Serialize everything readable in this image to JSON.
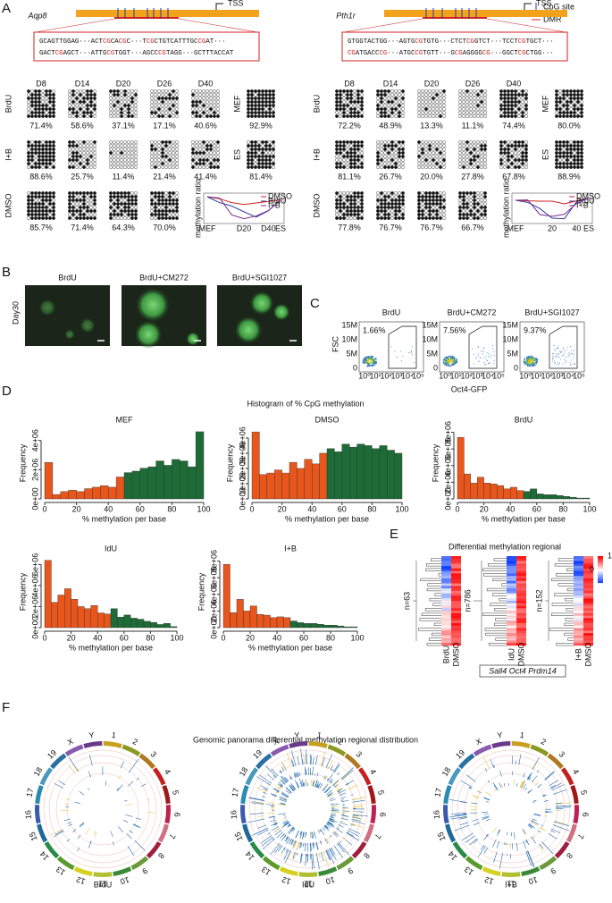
{
  "panel_labels": [
    "A",
    "B",
    "C",
    "D",
    "E",
    "F"
  ],
  "panel_a": {
    "legend": [
      "CpG site",
      "DMR"
    ],
    "tss": "TSS",
    "row_labels": [
      "BrdU",
      "I+B",
      "DMSO"
    ],
    "row_colors": [
      "#2b3a9c",
      "#7b2a8c",
      "#d42020"
    ],
    "days": [
      "D8",
      "D14",
      "D20",
      "D26",
      "D40"
    ],
    "controls": [
      "MEF",
      "ES"
    ],
    "mini_legend": [
      "DMSO",
      "BrdU",
      "I+B"
    ],
    "mini_colors": [
      "#d42020",
      "#2b3a9c",
      "#7b2a8c"
    ],
    "mini_ylabel": "methylation ratio",
    "genes": [
      {
        "name": "Aqp8",
        "seq": [
          "GCAGTTGGAG···ACTCGCACGC···TCGCTGTCATTTGCCGAT···",
          "GACTCGAGCT···ATTGCGTGGT···AGCCCGTAGG···GCTTTACCAT"
        ],
        "rows": [
          [
            "71.4%",
            "58.6%",
            "37.1%",
            "17.1%",
            "40.6%"
          ],
          [
            "88.6%",
            "25.7%",
            "11.4%",
            "21.4%",
            "41.4%"
          ],
          [
            "85.7%",
            "71.4%",
            "64.3%",
            "70.0%"
          ]
        ],
        "mef": "92.9%",
        "es": "81.4%",
        "mini_xticks": [
          "MEF",
          "D20",
          "D40",
          "ES"
        ]
      },
      {
        "name": "Pth1r",
        "seq": [
          "GTGGTACTGG···AGTGCGTGTG···CTCTCGGTCT···TCCTCGTGCT···",
          "CGATGACCCG···ATGCCGTGTT···GCGAGGGGCG···GGCTCGCTGG···"
        ],
        "rows": [
          [
            "72.2%",
            "48.9%",
            "13.3%",
            "11.1%",
            "74.4%"
          ],
          [
            "81.1%",
            "26.7%",
            "20.0%",
            "27.8%",
            "67.8%"
          ],
          [
            "77.8%",
            "76.7%",
            "76.7%",
            "66.7%"
          ]
        ],
        "mef": "80.0%",
        "es": "88.9%",
        "mini_xticks": [
          "MEF",
          "20",
          "40",
          "ES"
        ]
      }
    ]
  },
  "panel_b": {
    "labels": [
      "BrdU",
      "BrdU+CM272",
      "BrdU+SGI1027"
    ],
    "row_label": "Day30"
  },
  "panel_c": {
    "labels": [
      "BrdU",
      "BrdU+CM272",
      "BrdU+SGI1027"
    ],
    "pcts": [
      "1.66%",
      "7.56%",
      "9.37%"
    ],
    "ylabel": "FSC",
    "xlabel": "Oct4-GFP",
    "yticks": [
      "15M",
      "10M",
      "5M",
      "0"
    ],
    "xticks": [
      "10⁰",
      "10¹",
      "10²",
      "10³",
      "10⁴",
      "10⁵"
    ]
  },
  "panel_d": {
    "title": "Histogram of % CpG methylation",
    "xlabel": "% methylation per base",
    "ylabel": "Frequency",
    "charts": [
      {
        "type": "histogram",
        "title": "MEF",
        "bins": [
          0,
          5,
          10,
          15,
          20,
          25,
          30,
          35,
          40,
          45,
          50,
          55,
          60,
          65,
          70,
          75,
          80,
          85,
          90,
          95,
          100
        ],
        "counts": [
          2500000,
          300000,
          500000,
          600000,
          500000,
          700000,
          800000,
          900000,
          800000,
          1500000,
          1800000,
          1900000,
          2100000,
          2200000,
          2600000,
          2300000,
          2700000,
          2600000,
          2200000,
          4600000
        ],
        "colors": [
          "#e8561c",
          "#e8561c",
          "#e8561c",
          "#e8561c",
          "#e8561c",
          "#e8561c",
          "#e8561c",
          "#e8561c",
          "#e8561c",
          "#e8561c",
          "#1d6b36",
          "#1d6b36",
          "#1d6b36",
          "#1d6b36",
          "#1d6b36",
          "#1d6b36",
          "#1d6b36",
          "#1d6b36",
          "#1d6b36",
          "#1d6b36"
        ],
        "xlim": [
          0,
          100
        ],
        "xticks": [
          0,
          20,
          40,
          60,
          80,
          100
        ],
        "ylim": [
          0,
          4900000
        ],
        "yticks": [
          {
            "value": 0,
            "label": "0e+00"
          },
          {
            "value": 2000000,
            "label": "2e+06"
          },
          {
            "value": 4000000,
            "label": "4e+06"
          }
        ]
      },
      {
        "type": "histogram",
        "title": "DMSO",
        "bins": [
          0,
          5,
          10,
          15,
          20,
          25,
          30,
          35,
          40,
          45,
          50,
          55,
          60,
          65,
          70,
          75,
          80,
          85,
          90,
          95,
          100
        ],
        "counts": [
          4400000,
          1600000,
          1700000,
          1900000,
          1700000,
          2400000,
          2000000,
          2600000,
          2300000,
          3000000,
          3300000,
          3100000,
          3600000,
          3400000,
          3600000,
          3500000,
          3300000,
          3500000,
          3200000,
          3000000
        ],
        "colors": [
          "#e8561c",
          "#e8561c",
          "#e8561c",
          "#e8561c",
          "#e8561c",
          "#e8561c",
          "#e8561c",
          "#e8561c",
          "#e8561c",
          "#e8561c",
          "#1d6b36",
          "#1d6b36",
          "#1d6b36",
          "#1d6b36",
          "#1d6b36",
          "#1d6b36",
          "#1d6b36",
          "#1d6b36",
          "#1d6b36",
          "#1d6b36"
        ],
        "xlim": [
          0,
          100
        ],
        "xticks": [
          0,
          20,
          40,
          60,
          80,
          100
        ],
        "ylim": [
          0,
          4700000
        ],
        "yticks": [
          {
            "value": 0,
            "label": "0e+00"
          },
          {
            "value": 1000000,
            "label": "1e+06"
          },
          {
            "value": 2000000,
            "label": "2e+06"
          },
          {
            "value": 3000000,
            "label": "3e+06"
          },
          {
            "value": 4000000,
            "label": "4e+06"
          }
        ]
      },
      {
        "type": "histogram",
        "title": "BrdU",
        "bins": [
          0,
          5,
          10,
          15,
          20,
          25,
          30,
          35,
          40,
          45,
          50,
          55,
          60,
          65,
          70,
          75,
          80,
          85,
          90,
          95,
          100
        ],
        "counts": [
          7400000,
          3000000,
          1900000,
          2600000,
          1900000,
          1800000,
          1600000,
          1200000,
          1400000,
          1000000,
          900000,
          1200000,
          600000,
          500000,
          500000,
          400000,
          300000,
          200000,
          100000,
          100000
        ],
        "colors": [
          "#e8561c",
          "#e8561c",
          "#e8561c",
          "#e8561c",
          "#e8561c",
          "#e8561c",
          "#e8561c",
          "#e8561c",
          "#e8561c",
          "#e8561c",
          "#1d6b36",
          "#1d6b36",
          "#1d6b36",
          "#1d6b36",
          "#1d6b36",
          "#1d6b36",
          "#1d6b36",
          "#1d6b36",
          "#1d6b36",
          "#1d6b36"
        ],
        "xlim": [
          0,
          100
        ],
        "xticks": [
          0,
          20,
          40,
          60,
          80,
          100
        ],
        "ylim": [
          0,
          8600000
        ],
        "yticks": [
          {
            "value": 0,
            "label": "0e+00"
          },
          {
            "value": 2000000,
            "label": "2e+06"
          },
          {
            "value": 4000000,
            "label": "4e+06"
          },
          {
            "value": 6000000,
            "label": "6e+06"
          },
          {
            "value": 8000000,
            "label": "8e+06"
          }
        ]
      },
      {
        "type": "histogram",
        "title": "IdU",
        "bins": [
          0,
          5,
          10,
          15,
          20,
          25,
          30,
          35,
          40,
          45,
          50,
          55,
          60,
          65,
          70,
          75,
          80,
          85,
          90,
          95,
          100
        ],
        "counts": [
          6400000,
          2400000,
          3100000,
          3700000,
          2700000,
          2000000,
          1800000,
          2100000,
          1400000,
          1300000,
          1800000,
          1000000,
          1200000,
          900000,
          800000,
          600000,
          500000,
          300000,
          400000,
          100000
        ],
        "colors": [
          "#e8561c",
          "#e8561c",
          "#e8561c",
          "#e8561c",
          "#e8561c",
          "#e8561c",
          "#e8561c",
          "#e8561c",
          "#e8561c",
          "#e8561c",
          "#1d6b36",
          "#1d6b36",
          "#1d6b36",
          "#1d6b36",
          "#1d6b36",
          "#1d6b36",
          "#1d6b36",
          "#1d6b36",
          "#1d6b36",
          "#1d6b36"
        ],
        "xlim": [
          0,
          100
        ],
        "xticks": [
          0,
          20,
          40,
          60,
          80,
          100
        ],
        "ylim": [
          0,
          6800000
        ],
        "yticks": [
          {
            "value": 0,
            "label": "0e+00"
          },
          {
            "value": 2000000,
            "label": "2e+06"
          },
          {
            "value": 4000000,
            "label": "4e+06"
          },
          {
            "value": 6000000,
            "label": "6e+06"
          }
        ]
      },
      {
        "type": "histogram",
        "title": "I+B",
        "bins": [
          0,
          5,
          10,
          15,
          20,
          25,
          30,
          35,
          40,
          45,
          50,
          55,
          60,
          65,
          70,
          75,
          80,
          85,
          90,
          95,
          100
        ],
        "counts": [
          7600000,
          1800000,
          3400000,
          2000000,
          2600000,
          1600000,
          1500000,
          1200000,
          1300000,
          1200000,
          800000,
          600000,
          500000,
          500000,
          400000,
          300000,
          300000,
          200000,
          100000,
          100000
        ],
        "colors": [
          "#e8561c",
          "#e8561c",
          "#e8561c",
          "#e8561c",
          "#e8561c",
          "#e8561c",
          "#e8561c",
          "#e8561c",
          "#e8561c",
          "#e8561c",
          "#1d6b36",
          "#1d6b36",
          "#1d6b36",
          "#1d6b36",
          "#1d6b36",
          "#1d6b36",
          "#1d6b36",
          "#1d6b36",
          "#1d6b36",
          "#1d6b36"
        ],
        "xlim": [
          0,
          100
        ],
        "xticks": [
          0,
          20,
          40,
          60,
          80,
          100
        ],
        "ylim": [
          0,
          8600000
        ],
        "yticks": [
          {
            "value": 0,
            "label": "0e+00"
          },
          {
            "value": 2000000,
            "label": "2e+06"
          },
          {
            "value": 4000000,
            "label": "4e+06"
          },
          {
            "value": 6000000,
            "label": "6e+06"
          },
          {
            "value": 8000000,
            "label": "8e+06"
          }
        ]
      }
    ]
  },
  "panel_e": {
    "title": "Differential methylation regional",
    "ns": [
      "n=63",
      "n=786",
      "n=152"
    ],
    "labels": [
      [
        "BrdU",
        "DMSO"
      ],
      [
        "IdU",
        "DMSO"
      ],
      [
        "I+B",
        "DMSO"
      ]
    ],
    "colorbar": [
      "1",
      "0"
    ],
    "genes": "Sall4 Oct4 Prdm14"
  },
  "panel_f": {
    "title": "Genomic panorama differential methylation regional distribution",
    "labels": [
      "BrdU",
      "IdU",
      "I+B"
    ],
    "chromosomes": [
      "1",
      "2",
      "3",
      "4",
      "5",
      "6",
      "7",
      "8",
      "9",
      "10",
      "11",
      "12",
      "13",
      "14",
      "15",
      "16",
      "17",
      "18",
      "19",
      "X",
      "Y"
    ]
  }
}
